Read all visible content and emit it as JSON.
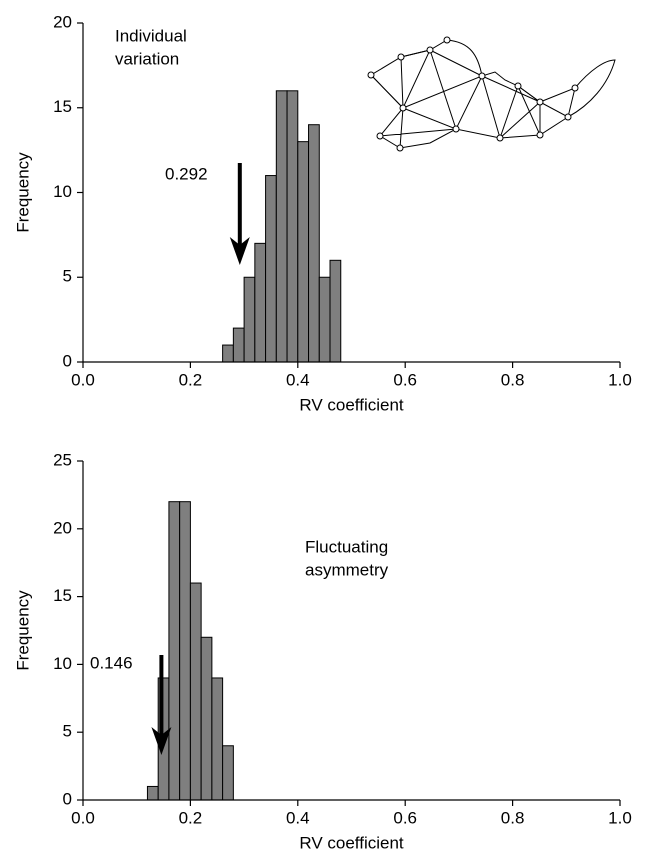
{
  "chart_data": [
    {
      "type": "histogram",
      "annotation": [
        "Individual",
        "variation"
      ],
      "xlabel": "RV coefficient",
      "ylabel": "Frequency",
      "bins": [
        0.26,
        0.28,
        0.3,
        0.32,
        0.34,
        0.36,
        0.38,
        0.4,
        0.42,
        0.44,
        0.46,
        0.48
      ],
      "values": [
        1,
        2,
        5,
        7,
        11,
        16,
        16,
        13,
        14,
        5,
        6
      ],
      "color": "#7f7f7f",
      "marker": {
        "value": 0.292,
        "label": "0.292"
      },
      "xlim": [
        0,
        1
      ],
      "xticks": [
        {
          "value": 0,
          "label": "0.0"
        },
        {
          "value": 0.2,
          "label": "0.2"
        },
        {
          "value": 0.4,
          "label": "0.4"
        },
        {
          "value": 0.6,
          "label": "0.6"
        },
        {
          "value": 0.8,
          "label": "0.8"
        },
        {
          "value": 1,
          "label": "1.0"
        }
      ],
      "ylim": [
        0,
        20
      ],
      "yticks": [
        0,
        5,
        10,
        15,
        20
      ],
      "grid": false
    },
    {
      "type": "histogram",
      "annotation": [
        "Fluctuating",
        "asymmetry"
      ],
      "xlabel": "RV coefficient",
      "ylabel": "Frequency",
      "bins": [
        0.12,
        0.14,
        0.16,
        0.18,
        0.2,
        0.22,
        0.24,
        0.26,
        0.28
      ],
      "values": [
        1,
        9,
        22,
        22,
        16,
        12,
        9,
        4
      ],
      "color": "#7f7f7f",
      "marker": {
        "value": 0.146,
        "label": "0.146"
      },
      "xlim": [
        0,
        1
      ],
      "xticks": [
        {
          "value": 0,
          "label": "0.0"
        },
        {
          "value": 0.2,
          "label": "0.2"
        },
        {
          "value": 0.4,
          "label": "0.4"
        },
        {
          "value": 0.6,
          "label": "0.6"
        },
        {
          "value": 0.8,
          "label": "0.8"
        },
        {
          "value": 1,
          "label": "1.0"
        }
      ],
      "ylim": [
        0,
        25
      ],
      "yticks": [
        0,
        5,
        10,
        15,
        20,
        25
      ],
      "grid": false
    }
  ]
}
